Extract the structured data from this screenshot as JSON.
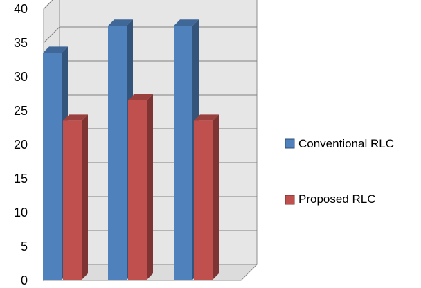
{
  "chart_data": {
    "type": "bar",
    "categories": [
      "",
      "",
      ""
    ],
    "series": [
      {
        "name": "Conventional RLC",
        "values": [
          32,
          36,
          36
        ],
        "color": "#4f81bd"
      },
      {
        "name": "Proposed RLC",
        "values": [
          22,
          25,
          22
        ],
        "color": "#c0504d"
      }
    ],
    "title": "",
    "xlabel": "",
    "ylabel": "",
    "ylim": [
      0,
      40
    ],
    "yticks": [
      "0",
      "5",
      "10",
      "15",
      "20",
      "25",
      "30",
      "35",
      "40"
    ],
    "grid": true,
    "legend_position": "right",
    "style": "3d-clustered-column"
  }
}
